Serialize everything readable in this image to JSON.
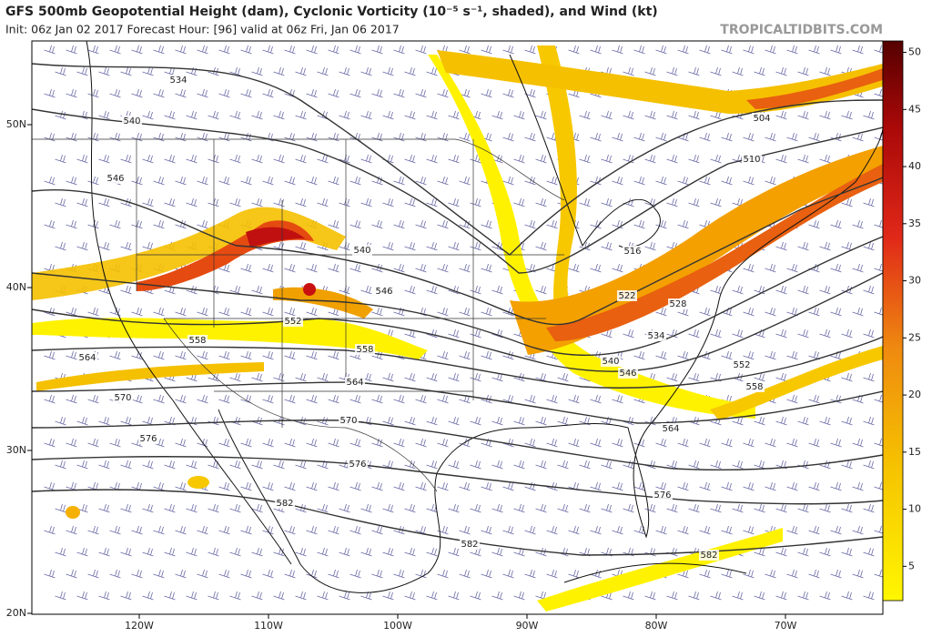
{
  "header": {
    "title": "GFS 500mb Geopotential Height (dam), Cyclonic Vorticity (10⁻⁵ s⁻¹, shaded), and Wind (kt)",
    "subtitle": "Init: 06z Jan 02 2017   Forecast Hour: [96]   valid at 06z Fri, Jan 06 2017",
    "watermark": "TROPICALTIDBITS.COM"
  },
  "map": {
    "lat_ticks": [
      {
        "value": 50,
        "label": "50N"
      },
      {
        "value": 40,
        "label": "40N"
      },
      {
        "value": 30,
        "label": "30N"
      },
      {
        "value": 20,
        "label": "20N"
      }
    ],
    "lon_ticks": [
      {
        "value": -120,
        "label": "120W"
      },
      {
        "value": -110,
        "label": "110W"
      },
      {
        "value": -100,
        "label": "100W"
      },
      {
        "value": -90,
        "label": "90W"
      },
      {
        "value": -80,
        "label": "80W"
      },
      {
        "value": -70,
        "label": "70W"
      }
    ],
    "contour_labels": [
      534,
      540,
      546,
      540,
      546,
      552,
      558,
      558,
      564,
      564,
      570,
      570,
      576,
      576,
      582,
      582,
      504,
      510,
      516,
      522,
      528,
      534,
      540,
      546,
      552,
      558,
      564,
      576,
      582
    ]
  },
  "colorbar": {
    "lim": [
      2,
      51
    ],
    "ticks": [
      5,
      10,
      15,
      20,
      25,
      30,
      35,
      40,
      45,
      50
    ]
  }
}
